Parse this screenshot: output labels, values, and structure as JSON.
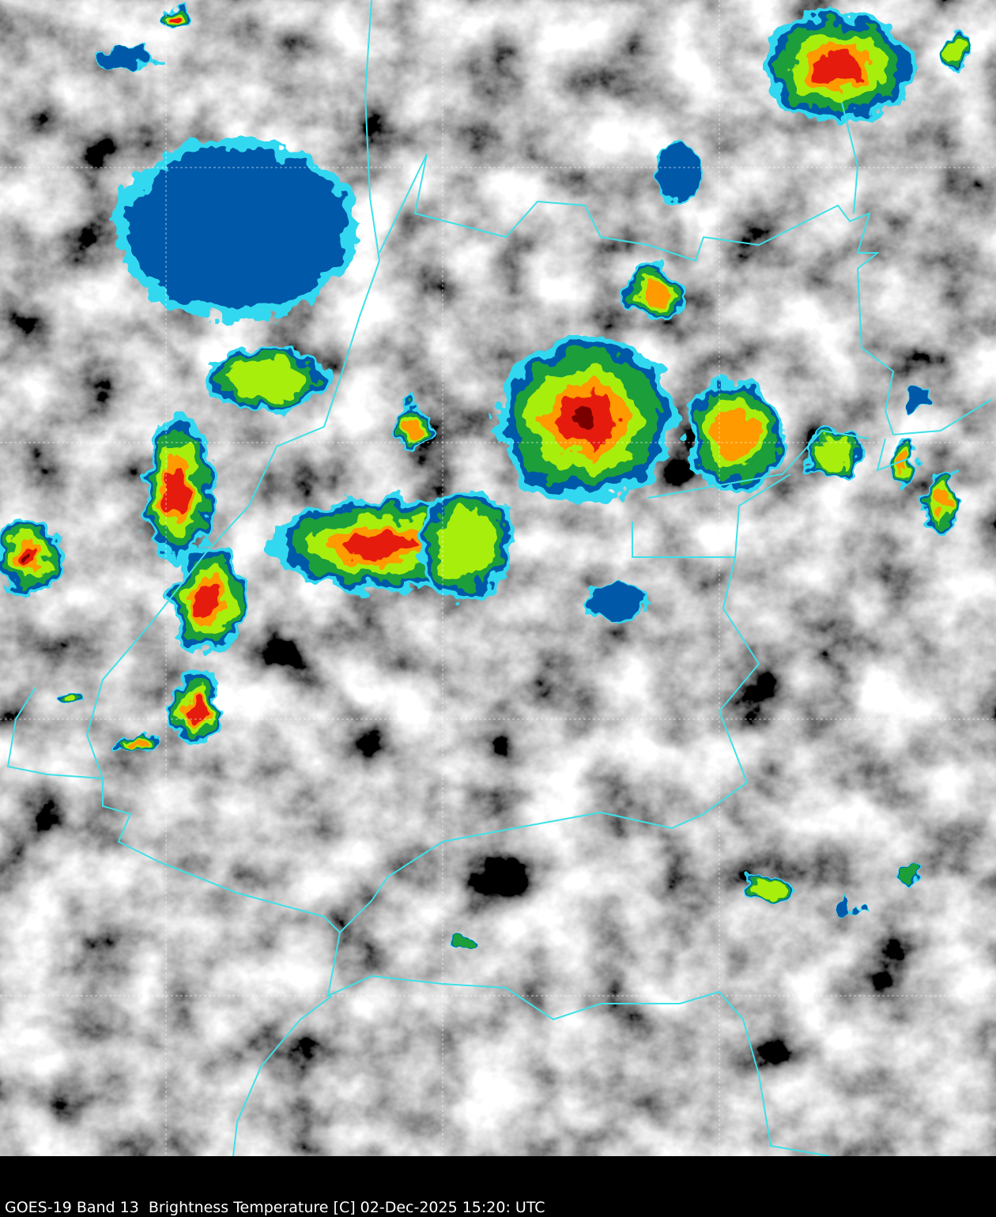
{
  "caption": "GOES-19 Band 13  Brightness Temperature [C] 02-Dec-2025 15:20: UTC"
}
